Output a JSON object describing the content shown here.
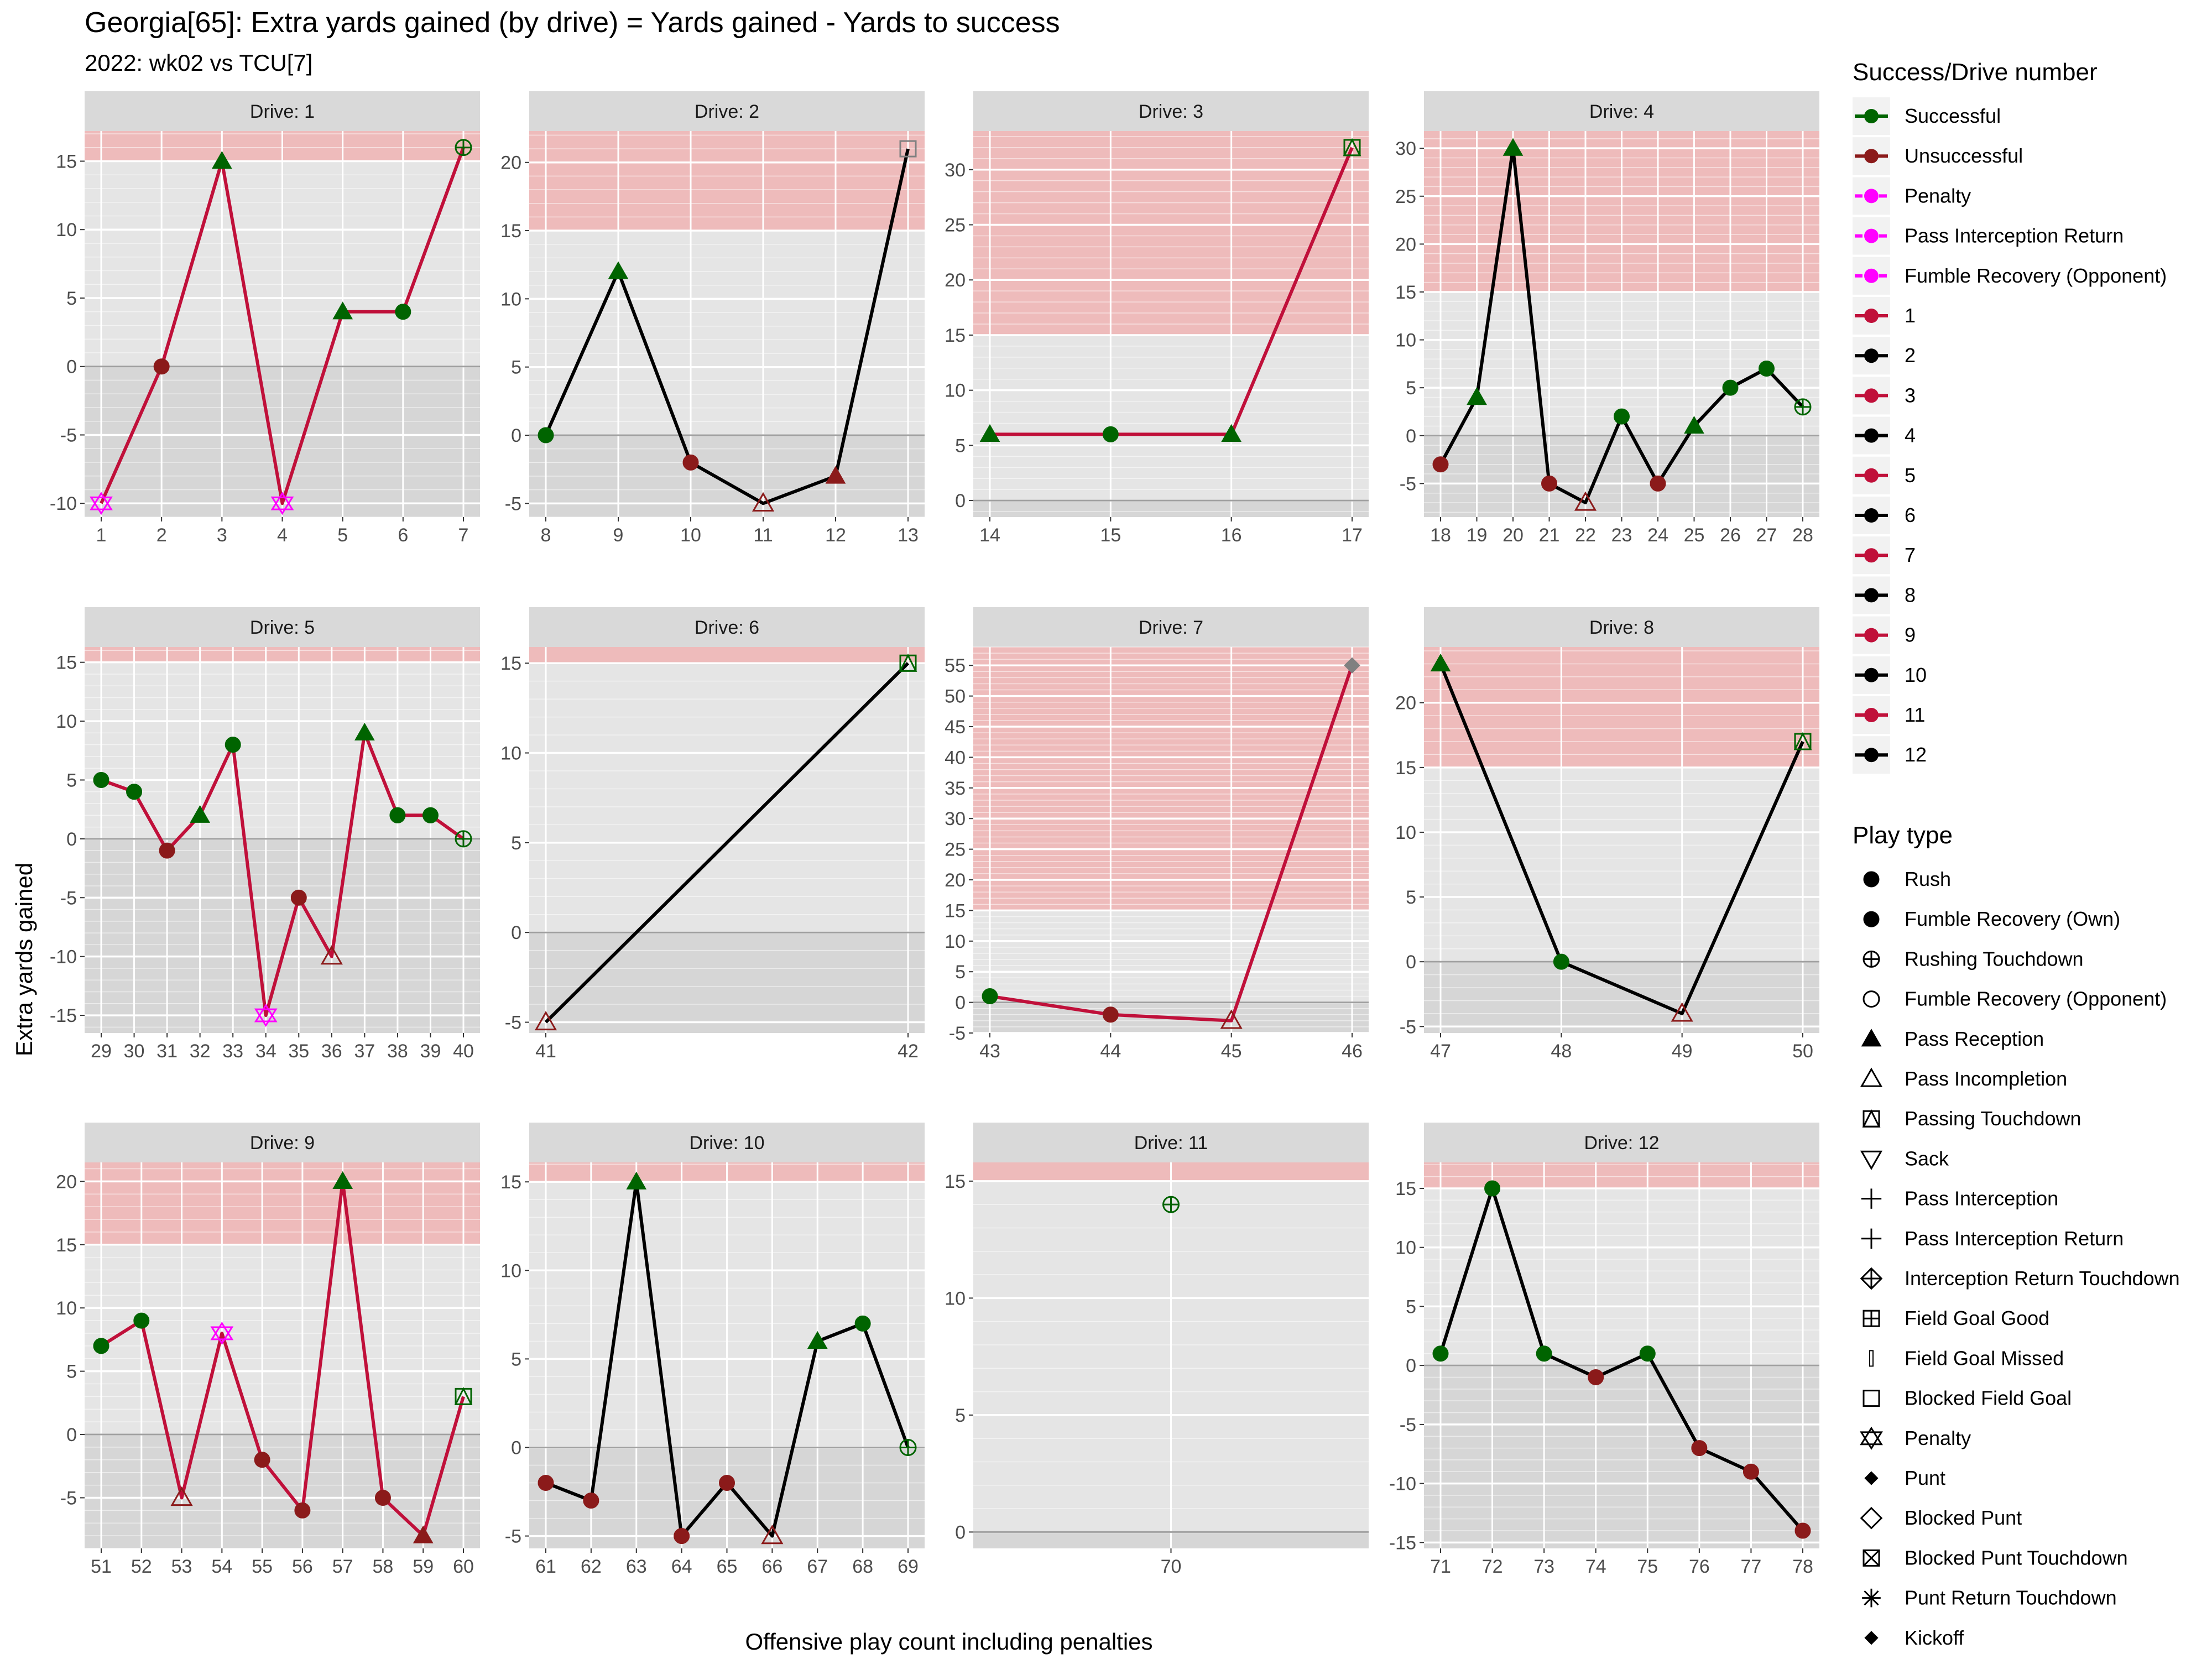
{
  "title": "Georgia[65]: Extra yards gained (by drive) = Yards gained - Yards to success",
  "subtitle": "2022: wk02 vs TCU[7]",
  "colors": {
    "successful": "#006400",
    "unsuccessful": "#8b1a1a",
    "penalty": "#ff00ff",
    "line_red": "#c0103a",
    "line_black": "#000000",
    "band": "#f0b4b4",
    "panel": "#e5e5e5",
    "panel_dark": "#d6d6d6",
    "strip": "#d9d9d9"
  },
  "chart_data": {
    "type": "line",
    "title": "Georgia[65]: Extra yards gained (by drive) = Yards gained - Yards to success",
    "subtitle": "2022: wk02 vs TCU[7]",
    "xlabel": "Offensive play count including penalties",
    "ylabel": "Extra yards gained",
    "facets": [
      {
        "label": "Drive: 1",
        "drive": 1,
        "ylim": [
          -11,
          17.2
        ],
        "band_from": 15,
        "yticks": [
          -10,
          -5,
          0,
          5,
          10,
          15
        ],
        "xticks": [
          1,
          2,
          3,
          4,
          5,
          6,
          7
        ],
        "points": [
          {
            "x": 1,
            "y": -10,
            "shape": "penalty",
            "color": "penalty"
          },
          {
            "x": 2,
            "y": 0,
            "shape": "circle",
            "color": "unsuccessful"
          },
          {
            "x": 3,
            "y": 15,
            "shape": "triangle",
            "color": "successful"
          },
          {
            "x": 4,
            "y": -10,
            "shape": "penalty",
            "color": "penalty"
          },
          {
            "x": 5,
            "y": 4,
            "shape": "triangle",
            "color": "successful"
          },
          {
            "x": 6,
            "y": 4,
            "shape": "circle",
            "color": "successful"
          },
          {
            "x": 7,
            "y": 16,
            "shape": "plus_circle",
            "color": "successful"
          }
        ]
      },
      {
        "label": "Drive: 2",
        "drive": 2,
        "ylim": [
          -6,
          22.3
        ],
        "band_from": 15,
        "yticks": [
          -5,
          0,
          5,
          10,
          15,
          20
        ],
        "xticks": [
          8,
          9,
          10,
          11,
          12,
          13
        ],
        "points": [
          {
            "x": 8,
            "y": 0,
            "shape": "circle",
            "color": "successful"
          },
          {
            "x": 9,
            "y": 12,
            "shape": "triangle",
            "color": "successful"
          },
          {
            "x": 10,
            "y": -2,
            "shape": "circle",
            "color": "unsuccessful"
          },
          {
            "x": 11,
            "y": -5,
            "shape": "triangle_open",
            "color": "unsuccessful"
          },
          {
            "x": 12,
            "y": -3,
            "shape": "triangle",
            "color": "unsuccessful"
          },
          {
            "x": 13,
            "y": 21,
            "shape": "square_open",
            "color": "gray"
          }
        ]
      },
      {
        "label": "Drive: 3",
        "drive": 3,
        "ylim": [
          -1.5,
          33.5
        ],
        "band_from": 15,
        "yticks": [
          0,
          5,
          10,
          15,
          20,
          25,
          30
        ],
        "xticks": [
          14,
          15,
          16,
          17
        ],
        "points": [
          {
            "x": 14,
            "y": 6,
            "shape": "triangle",
            "color": "successful"
          },
          {
            "x": 15,
            "y": 6,
            "shape": "circle",
            "color": "successful"
          },
          {
            "x": 16,
            "y": 6,
            "shape": "triangle",
            "color": "successful"
          },
          {
            "x": 17,
            "y": 32,
            "shape": "pass_td",
            "color": "successful"
          }
        ]
      },
      {
        "label": "Drive: 4",
        "drive": 4,
        "ylim": [
          -8.5,
          31.8
        ],
        "band_from": 15,
        "yticks": [
          -5,
          0,
          5,
          10,
          15,
          20,
          25,
          30
        ],
        "xticks": [
          18,
          19,
          20,
          21,
          22,
          23,
          24,
          25,
          26,
          27,
          28
        ],
        "points": [
          {
            "x": 18,
            "y": -3,
            "shape": "circle",
            "color": "unsuccessful"
          },
          {
            "x": 19,
            "y": 4,
            "shape": "triangle",
            "color": "successful"
          },
          {
            "x": 20,
            "y": 30,
            "shape": "triangle",
            "color": "successful"
          },
          {
            "x": 21,
            "y": -5,
            "shape": "circle",
            "color": "unsuccessful"
          },
          {
            "x": 22,
            "y": -7,
            "shape": "triangle_open",
            "color": "unsuccessful"
          },
          {
            "x": 23,
            "y": 2,
            "shape": "circle",
            "color": "successful"
          },
          {
            "x": 24,
            "y": -5,
            "shape": "circle",
            "color": "unsuccessful"
          },
          {
            "x": 25,
            "y": 1,
            "shape": "triangle",
            "color": "successful"
          },
          {
            "x": 26,
            "y": 5,
            "shape": "circle",
            "color": "successful"
          },
          {
            "x": 27,
            "y": 7,
            "shape": "circle",
            "color": "successful"
          },
          {
            "x": 28,
            "y": 3,
            "shape": "plus_circle",
            "color": "successful"
          }
        ]
      },
      {
        "label": "Drive: 5",
        "drive": 5,
        "ylim": [
          -16.5,
          16.3
        ],
        "band_from": 15,
        "yticks": [
          -15,
          -10,
          -5,
          0,
          5,
          10,
          15
        ],
        "xticks": [
          29,
          30,
          31,
          32,
          33,
          34,
          35,
          36,
          37,
          38,
          39,
          40
        ],
        "points": [
          {
            "x": 29,
            "y": 5,
            "shape": "circle",
            "color": "successful"
          },
          {
            "x": 30,
            "y": 4,
            "shape": "circle",
            "color": "successful"
          },
          {
            "x": 31,
            "y": -1,
            "shape": "circle",
            "color": "unsuccessful"
          },
          {
            "x": 32,
            "y": 2,
            "shape": "triangle",
            "color": "successful"
          },
          {
            "x": 33,
            "y": 8,
            "shape": "circle",
            "color": "successful"
          },
          {
            "x": 34,
            "y": -15,
            "shape": "penalty",
            "color": "penalty"
          },
          {
            "x": 35,
            "y": -5,
            "shape": "circle",
            "color": "unsuccessful"
          },
          {
            "x": 36,
            "y": -10,
            "shape": "triangle_open",
            "color": "unsuccessful"
          },
          {
            "x": 37,
            "y": 9,
            "shape": "triangle",
            "color": "successful"
          },
          {
            "x": 38,
            "y": 2,
            "shape": "circle",
            "color": "successful"
          },
          {
            "x": 39,
            "y": 2,
            "shape": "circle",
            "color": "successful"
          },
          {
            "x": 40,
            "y": 0,
            "shape": "plus_circle",
            "color": "successful"
          }
        ]
      },
      {
        "label": "Drive: 6",
        "drive": 6,
        "ylim": [
          -5.6,
          15.9
        ],
        "band_from": 15,
        "yticks": [
          -5,
          0,
          5,
          10,
          15
        ],
        "xticks": [
          41,
          42
        ],
        "points": [
          {
            "x": 41,
            "y": -5,
            "shape": "triangle_open",
            "color": "unsuccessful"
          },
          {
            "x": 42,
            "y": 15,
            "shape": "pass_td",
            "color": "successful"
          }
        ]
      },
      {
        "label": "Drive: 7",
        "drive": 7,
        "ylim": [
          -5,
          58
        ],
        "band_from": 15,
        "yticks": [
          -5,
          0,
          5,
          10,
          15,
          20,
          25,
          30,
          35,
          40,
          45,
          50,
          55
        ],
        "xticks": [
          43,
          44,
          45,
          46
        ],
        "points": [
          {
            "x": 43,
            "y": 1,
            "shape": "circle",
            "color": "successful"
          },
          {
            "x": 44,
            "y": -2,
            "shape": "circle",
            "color": "unsuccessful"
          },
          {
            "x": 45,
            "y": -3,
            "shape": "triangle_open",
            "color": "unsuccessful"
          },
          {
            "x": 46,
            "y": 55,
            "shape": "diamond",
            "color": "gray"
          }
        ]
      },
      {
        "label": "Drive: 8",
        "drive": 8,
        "ylim": [
          -5.5,
          24.3
        ],
        "band_from": 15,
        "yticks": [
          -5,
          0,
          5,
          10,
          15,
          20
        ],
        "xticks": [
          47,
          48,
          49,
          50
        ],
        "points": [
          {
            "x": 47,
            "y": 23,
            "shape": "triangle",
            "color": "successful"
          },
          {
            "x": 48,
            "y": 0,
            "shape": "circle",
            "color": "successful"
          },
          {
            "x": 49,
            "y": -4,
            "shape": "triangle_open",
            "color": "unsuccessful"
          },
          {
            "x": 50,
            "y": 17,
            "shape": "pass_td",
            "color": "successful"
          }
        ]
      },
      {
        "label": "Drive: 9",
        "drive": 9,
        "ylim": [
          -9,
          21.5
        ],
        "band_from": 15,
        "yticks": [
          -5,
          0,
          5,
          10,
          15,
          20
        ],
        "xticks": [
          51,
          52,
          53,
          54,
          55,
          56,
          57,
          58,
          59,
          60
        ],
        "points": [
          {
            "x": 51,
            "y": 7,
            "shape": "circle",
            "color": "successful"
          },
          {
            "x": 52,
            "y": 9,
            "shape": "circle",
            "color": "successful"
          },
          {
            "x": 53,
            "y": -5,
            "shape": "triangle_open",
            "color": "unsuccessful"
          },
          {
            "x": 54,
            "y": 8,
            "shape": "penalty",
            "color": "penalty"
          },
          {
            "x": 55,
            "y": -2,
            "shape": "circle",
            "color": "unsuccessful"
          },
          {
            "x": 56,
            "y": -6,
            "shape": "circle",
            "color": "unsuccessful"
          },
          {
            "x": 57,
            "y": 20,
            "shape": "triangle",
            "color": "successful"
          },
          {
            "x": 58,
            "y": -5,
            "shape": "circle",
            "color": "unsuccessful"
          },
          {
            "x": 59,
            "y": -8,
            "shape": "triangle",
            "color": "unsuccessful"
          },
          {
            "x": 60,
            "y": 3,
            "shape": "pass_td",
            "color": "successful"
          }
        ]
      },
      {
        "label": "Drive: 10",
        "drive": 10,
        "ylim": [
          -5.7,
          16.1
        ],
        "band_from": 15,
        "yticks": [
          -5,
          0,
          5,
          10,
          15
        ],
        "xticks": [
          61,
          62,
          63,
          64,
          65,
          66,
          67,
          68,
          69
        ],
        "points": [
          {
            "x": 61,
            "y": -2,
            "shape": "circle",
            "color": "unsuccessful"
          },
          {
            "x": 62,
            "y": -3,
            "shape": "circle",
            "color": "unsuccessful"
          },
          {
            "x": 63,
            "y": 15,
            "shape": "triangle",
            "color": "successful"
          },
          {
            "x": 64,
            "y": -5,
            "shape": "circle",
            "color": "unsuccessful"
          },
          {
            "x": 65,
            "y": -2,
            "shape": "circle",
            "color": "unsuccessful"
          },
          {
            "x": 66,
            "y": -5,
            "shape": "triangle_open",
            "color": "unsuccessful"
          },
          {
            "x": 67,
            "y": 6,
            "shape": "triangle",
            "color": "successful"
          },
          {
            "x": 68,
            "y": 7,
            "shape": "circle",
            "color": "successful"
          },
          {
            "x": 69,
            "y": 0,
            "shape": "plus_circle",
            "color": "successful"
          }
        ]
      },
      {
        "label": "Drive: 11",
        "drive": 11,
        "ylim": [
          -0.7,
          15.8
        ],
        "band_from": 15,
        "yticks": [
          0,
          5,
          10,
          15
        ],
        "xticks": [
          70
        ],
        "points": [
          {
            "x": 70,
            "y": 14,
            "shape": "plus_circle",
            "color": "successful"
          }
        ]
      },
      {
        "label": "Drive: 12",
        "drive": 12,
        "ylim": [
          -15.5,
          17.2
        ],
        "band_from": 15,
        "yticks": [
          -15,
          -10,
          -5,
          0,
          5,
          10,
          15
        ],
        "xticks": [
          71,
          72,
          73,
          74,
          75,
          76,
          77,
          78
        ],
        "points": [
          {
            "x": 71,
            "y": 1,
            "shape": "circle",
            "color": "successful"
          },
          {
            "x": 72,
            "y": 15,
            "shape": "circle",
            "color": "successful"
          },
          {
            "x": 73,
            "y": 1,
            "shape": "circle",
            "color": "successful"
          },
          {
            "x": 74,
            "y": -1,
            "shape": "circle",
            "color": "unsuccessful"
          },
          {
            "x": 75,
            "y": 1,
            "shape": "circle",
            "color": "successful"
          },
          {
            "x": 76,
            "y": -7,
            "shape": "circle",
            "color": "unsuccessful"
          },
          {
            "x": 77,
            "y": -9,
            "shape": "circle",
            "color": "unsuccessful"
          },
          {
            "x": 78,
            "y": -14,
            "shape": "circle",
            "color": "unsuccessful"
          }
        ]
      }
    ],
    "legend": {
      "placement": "right",
      "success_title": "Success/Drive number",
      "success_items": [
        {
          "label": "Successful",
          "color": "successful"
        },
        {
          "label": "Unsuccessful",
          "color": "unsuccessful"
        },
        {
          "label": "Penalty",
          "color": "penalty",
          "dashed": true
        },
        {
          "label": "Pass Interception Return",
          "color": "penalty",
          "dashed": true
        },
        {
          "label": "Fumble Recovery (Opponent)",
          "color": "penalty",
          "dashed": true
        },
        {
          "label": "1",
          "color": "line_red"
        },
        {
          "label": "2",
          "color": "line_black"
        },
        {
          "label": "3",
          "color": "line_red"
        },
        {
          "label": "4",
          "color": "line_black"
        },
        {
          "label": "5",
          "color": "line_red"
        },
        {
          "label": "6",
          "color": "line_black"
        },
        {
          "label": "7",
          "color": "line_red"
        },
        {
          "label": "8",
          "color": "line_black"
        },
        {
          "label": "9",
          "color": "line_red"
        },
        {
          "label": "10",
          "color": "line_black"
        },
        {
          "label": "11",
          "color": "line_red"
        },
        {
          "label": "12",
          "color": "line_black"
        }
      ],
      "play_title": "Play type",
      "play_items": [
        {
          "label": "Rush",
          "shape": "circle"
        },
        {
          "label": "Fumble Recovery (Own)",
          "shape": "circle"
        },
        {
          "label": "Rushing Touchdown",
          "shape": "plus_circle"
        },
        {
          "label": "Fumble Recovery (Opponent)",
          "shape": "circle_open"
        },
        {
          "label": "Pass Reception",
          "shape": "triangle"
        },
        {
          "label": "Pass Incompletion",
          "shape": "triangle_open"
        },
        {
          "label": "Passing Touchdown",
          "shape": "pass_td"
        },
        {
          "label": "Sack",
          "shape": "triangle_down_open"
        },
        {
          "label": "Pass Interception",
          "shape": "plus"
        },
        {
          "label": "Pass Interception Return",
          "shape": "plus"
        },
        {
          "label": "Interception Return Touchdown",
          "shape": "diamond_plus"
        },
        {
          "label": "Field Goal Good",
          "shape": "square_plus"
        },
        {
          "label": "Field Goal Missed",
          "shape": "bar"
        },
        {
          "label": "Blocked Field Goal",
          "shape": "square_open"
        },
        {
          "label": "Penalty",
          "shape": "penalty"
        },
        {
          "label": "Punt",
          "shape": "diamond_small"
        },
        {
          "label": "Blocked Punt",
          "shape": "diamond_open"
        },
        {
          "label": "Blocked Punt Touchdown",
          "shape": "square_x"
        },
        {
          "label": "Punt Return Touchdown",
          "shape": "asterisk"
        },
        {
          "label": "Kickoff",
          "shape": "diamond_small"
        }
      ]
    }
  }
}
